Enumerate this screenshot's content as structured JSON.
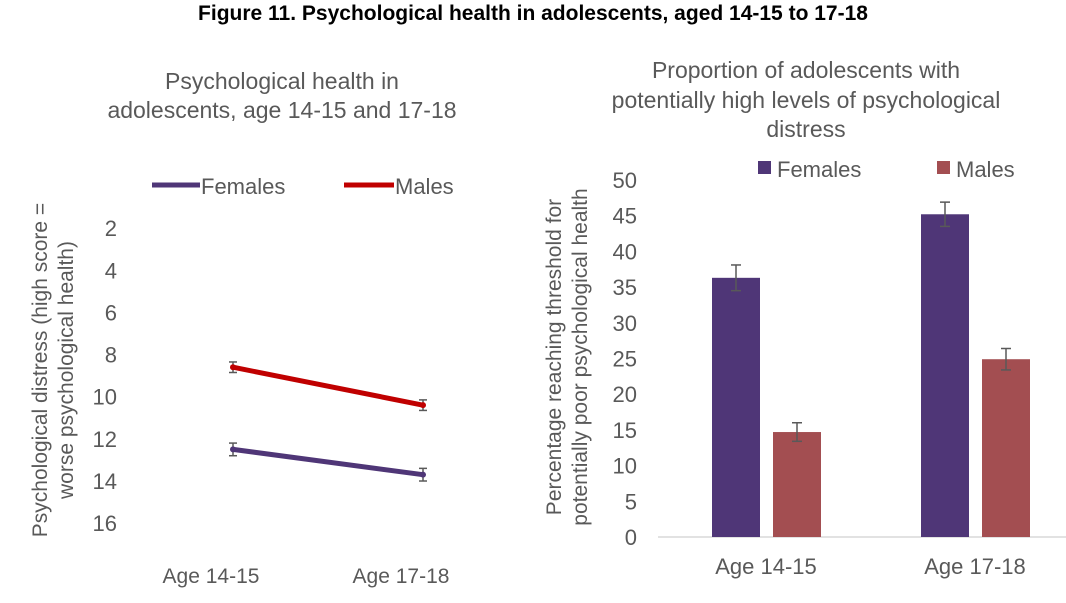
{
  "figure_title": "Figure 11. Psychological health in adolescents, aged 14-15 to 17-18",
  "colors": {
    "females": "#4f3677",
    "males_line": "#c00000",
    "males_bar": "#a34e51",
    "error_bar": "#595959",
    "axis": "#d9d9d9"
  },
  "chart_data": [
    {
      "type": "line",
      "title_lines": [
        "Psychological health in",
        "adolescents, age 14-15 and 17-18"
      ],
      "ylabel_lines": [
        "Psychological distress (high score =",
        "worse psychological health)"
      ],
      "xlabel": "",
      "categories": [
        "Age 14-15",
        "Age 17-18"
      ],
      "yticks": [
        "2",
        "4",
        "6",
        "8",
        "10",
        "12",
        "14",
        "16"
      ],
      "ylim": [
        16.8,
        0.9
      ],
      "y_reversed": true,
      "legend": "top",
      "grid": false,
      "series": [
        {
          "name": "Females",
          "values": [
            12.5,
            13.7
          ],
          "errors": [
            0.3,
            0.3
          ]
        },
        {
          "name": "Males",
          "values": [
            8.6,
            10.4
          ],
          "errors": [
            0.25,
            0.25
          ]
        }
      ]
    },
    {
      "type": "bar",
      "title_lines": [
        "Proportion of adolescents with",
        "potentially high levels of psychological",
        "distress"
      ],
      "ylabel_lines": [
        "Percentage reaching threshold for",
        "potentially poor psychological health"
      ],
      "xlabel": "",
      "categories": [
        "Age 14-15",
        "Age 17-18"
      ],
      "yticks": [
        "0",
        "5",
        "10",
        "15",
        "20",
        "25",
        "30",
        "35",
        "40",
        "45",
        "50"
      ],
      "ylim": [
        0,
        50
      ],
      "legend": "top",
      "grid": false,
      "series": [
        {
          "name": "Females",
          "values": [
            36.3,
            45.2
          ],
          "errors": [
            1.8,
            1.7
          ]
        },
        {
          "name": "Males",
          "values": [
            14.7,
            24.9
          ],
          "errors": [
            1.3,
            1.5
          ]
        }
      ]
    }
  ]
}
